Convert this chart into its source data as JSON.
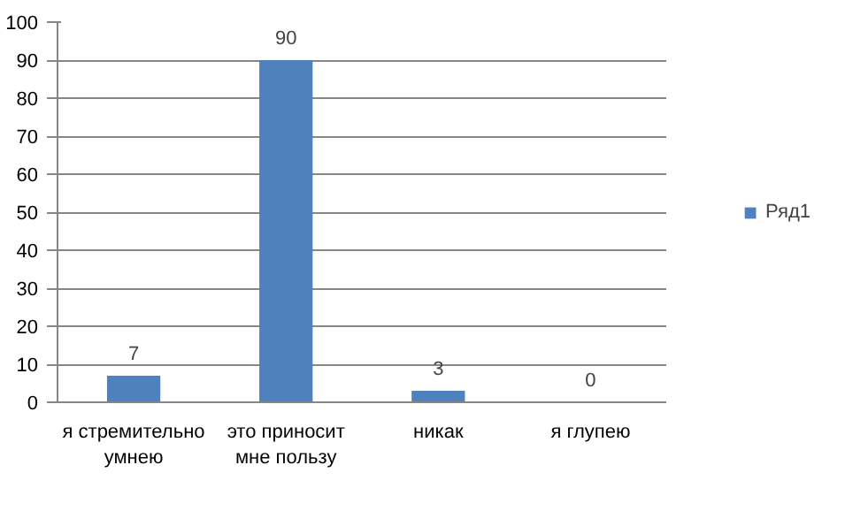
{
  "chart_data": {
    "type": "bar",
    "categories": [
      "я стремительно умнею",
      "это приносит мне пользу",
      "никак",
      "я глупею"
    ],
    "series": [
      {
        "name": "Ряд1",
        "color": "#4f81bd",
        "values": [
          7,
          90,
          3,
          0
        ]
      }
    ],
    "ylim": [
      0,
      100
    ],
    "yticks": [
      0,
      10,
      20,
      30,
      40,
      50,
      60,
      70,
      80,
      90,
      100
    ],
    "grid": "y",
    "legend": "right",
    "data_labels": true
  }
}
